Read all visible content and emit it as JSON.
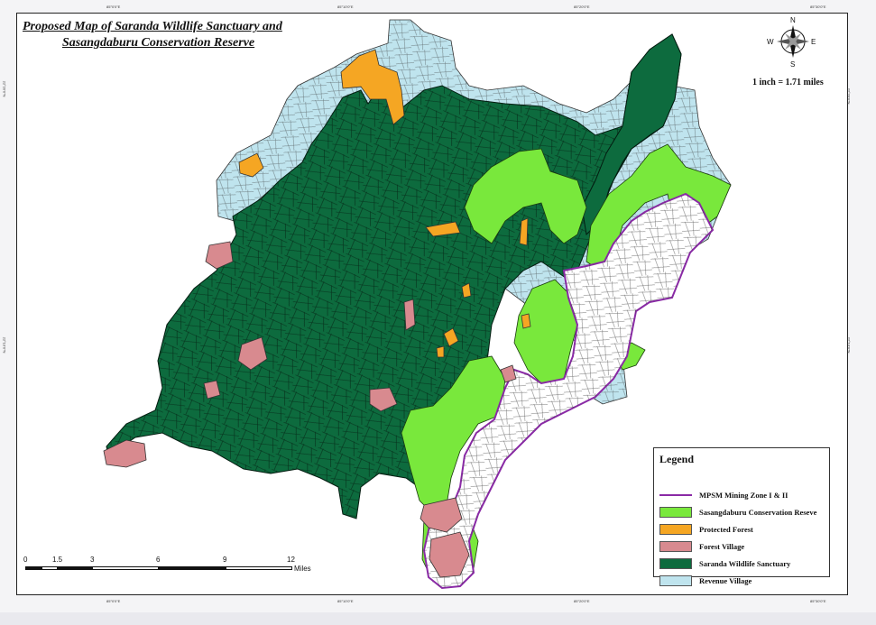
{
  "title": {
    "line1": "Proposed Map of Saranda Wildlife Sanctuary and",
    "line2": "Sasangdaburu Conservation Reserve"
  },
  "compass": {
    "north": "N",
    "south": "S",
    "east": "E",
    "west": "W"
  },
  "scale_text": "1 inch = 1.71 miles",
  "coords_top": [
    "85°0'0\"E",
    "85°10'0\"E",
    "85°20'0\"E",
    "85°30'0\"E"
  ],
  "coords_bottom": [
    "85°0'0\"E",
    "85°10'0\"E",
    "85°20'0\"E",
    "85°30'0\"E"
  ],
  "coords_left": [
    "22°20'0\"N",
    "22°10'0\"N"
  ],
  "coords_right": [
    "22°20'0\"N",
    "22°10'0\"N"
  ],
  "scalebar": {
    "ticks": [
      "0",
      "1.5",
      "3",
      "6",
      "9",
      "12"
    ],
    "unit": "Miles"
  },
  "legend": {
    "title": "Legend",
    "items": [
      {
        "label": "MPSM Mining Zone I & II",
        "kind": "line",
        "color": "#8a2aa6"
      },
      {
        "label": "Sasangdaburu Conservation Reseve",
        "kind": "fill",
        "color": "#79e83c"
      },
      {
        "label": "Protected Forest",
        "kind": "fill",
        "color": "#f5a623"
      },
      {
        "label": "Forest Village",
        "kind": "fill",
        "color": "#d88a8f"
      },
      {
        "label": "Saranda Wildlife Sanctuary",
        "kind": "fill",
        "color": "#0d6b3e"
      },
      {
        "label": "Revenue Village",
        "kind": "fill",
        "color": "#bfe4ee"
      }
    ]
  },
  "colors": {
    "sanctuary": "#0d6b3e",
    "conservation": "#79e83c",
    "protected": "#f5a623",
    "forest_village": "#d88a8f",
    "revenue": "#bfe4ee",
    "mining": "#8a2aa6"
  }
}
